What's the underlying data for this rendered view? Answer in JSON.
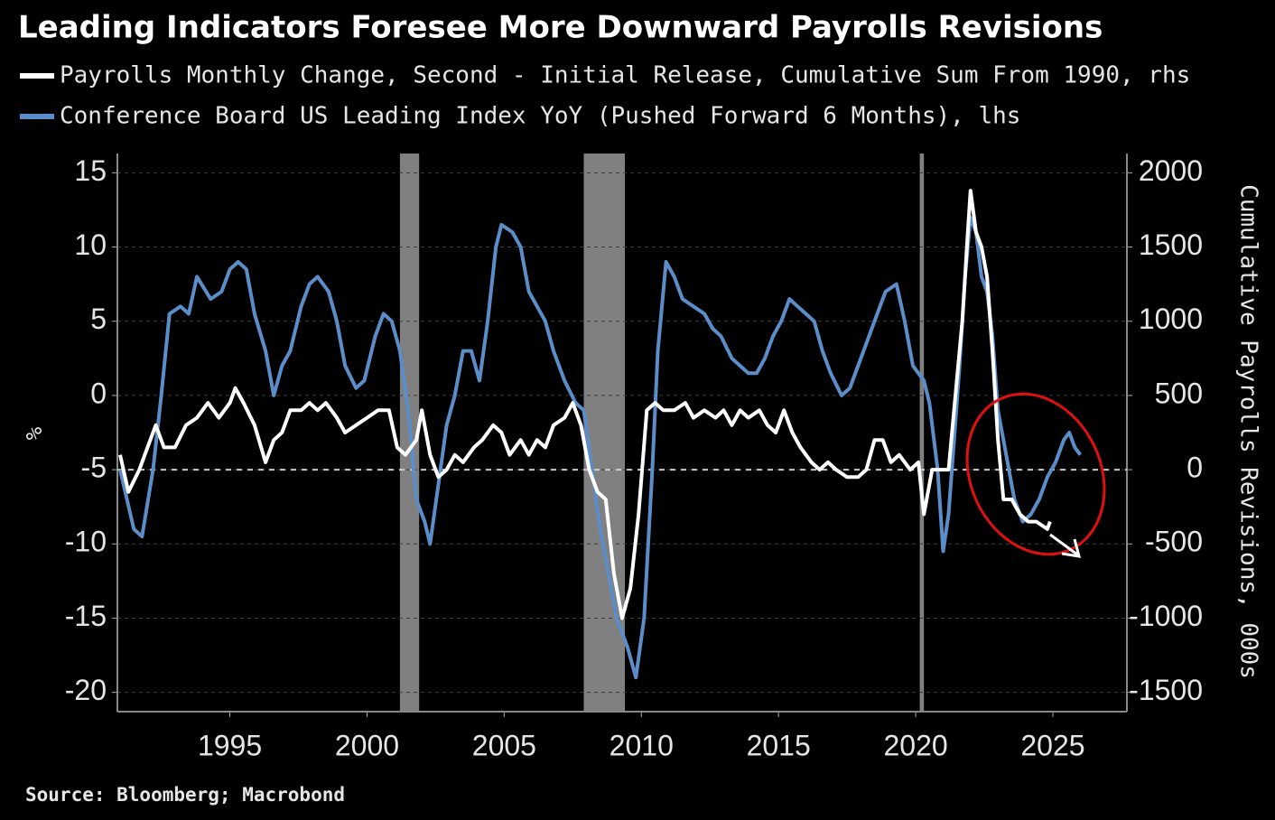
{
  "chart_data": {
    "type": "line",
    "title": "Leading Indicators Foresee More Downward Payrolls Revisions",
    "source": "Source: Bloomberg; Macrobond",
    "y_label": "%",
    "y2_label": "Cumulative Payrolls Revisions, 000s",
    "xlim": [
      1990.9,
      2027.7
    ],
    "xticks": [
      1995,
      2000,
      2005,
      2010,
      2015,
      2020,
      2025
    ],
    "ylim": [
      -21.3,
      16.3
    ],
    "yticks": [
      15,
      10,
      5,
      0,
      -5,
      -10,
      -15,
      -20
    ],
    "y2lim": [
      -1630,
      2130
    ],
    "y2ticks": [
      2000,
      1500,
      1000,
      500,
      0,
      -500,
      -1000,
      -1500
    ],
    "grid": true,
    "reference_line": {
      "value": 0,
      "axis": "y2",
      "color": "#cccccc"
    },
    "shaded_regions": [
      {
        "start": 2001.2,
        "end": 2001.9
      },
      {
        "start": 2007.9,
        "end": 2009.4
      },
      {
        "start": 2020.15,
        "end": 2020.3
      }
    ],
    "shade_color": "#808080",
    "series": [
      {
        "name": "Payrolls Monthly Change, Second - Initial Release, Cumulative Sum From 1990, rhs",
        "color": "#ffffff",
        "axis": "y2",
        "x": [
          1991.0,
          1991.3,
          1991.7,
          1992.0,
          1992.3,
          1992.6,
          1993.0,
          1993.4,
          1993.8,
          1994.2,
          1994.6,
          1995.0,
          1995.2,
          1995.5,
          1995.9,
          1996.3,
          1996.6,
          1996.9,
          1997.2,
          1997.6,
          1997.9,
          1998.2,
          1998.5,
          1998.9,
          1999.2,
          1999.6,
          2000.0,
          2000.4,
          2000.8,
          2001.1,
          2001.4,
          2001.8,
          2002.0,
          2002.3,
          2002.6,
          2002.9,
          2003.2,
          2003.5,
          2003.9,
          2004.2,
          2004.6,
          2004.9,
          2005.2,
          2005.6,
          2005.9,
          2006.2,
          2006.5,
          2006.8,
          2007.2,
          2007.5,
          2007.8,
          2008.1,
          2008.4,
          2008.7,
          2009.0,
          2009.3,
          2009.6,
          2009.9,
          2010.2,
          2010.5,
          2010.8,
          2011.2,
          2011.6,
          2011.9,
          2012.3,
          2012.7,
          2013.0,
          2013.3,
          2013.6,
          2013.9,
          2014.3,
          2014.6,
          2014.9,
          2015.2,
          2015.5,
          2015.8,
          2016.2,
          2016.5,
          2016.8,
          2017.1,
          2017.5,
          2017.9,
          2018.2,
          2018.5,
          2018.8,
          2019.1,
          2019.4,
          2019.8,
          2020.1,
          2020.3,
          2020.6,
          2020.9,
          2021.2,
          2021.5,
          2021.7,
          2021.9,
          2022.0,
          2022.2,
          2022.4,
          2022.6,
          2022.8,
          2023.0,
          2023.2,
          2023.5,
          2023.8,
          2024.1,
          2024.4,
          2024.8,
          2024.9
        ],
        "values": [
          100,
          -150,
          0,
          150,
          300,
          150,
          150,
          300,
          350,
          450,
          350,
          450,
          550,
          450,
          300,
          50,
          200,
          250,
          400,
          400,
          450,
          400,
          450,
          350,
          250,
          300,
          350,
          400,
          400,
          150,
          100,
          200,
          400,
          100,
          -50,
          0,
          100,
          50,
          150,
          200,
          300,
          250,
          100,
          200,
          100,
          200,
          150,
          300,
          350,
          450,
          300,
          0,
          -150,
          -200,
          -700,
          -1000,
          -800,
          -300,
          400,
          450,
          400,
          400,
          450,
          350,
          400,
          350,
          400,
          300,
          400,
          350,
          400,
          300,
          250,
          400,
          250,
          150,
          50,
          0,
          50,
          0,
          -50,
          -50,
          0,
          200,
          200,
          50,
          100,
          0,
          50,
          -300,
          0,
          0,
          0,
          600,
          1000,
          1600,
          1880,
          1600,
          1500,
          1300,
          800,
          200,
          -200,
          -200,
          -300,
          -350,
          -350,
          -400,
          -350
        ]
      },
      {
        "name": "Conference Board US Leading Index YoY (Pushed Forward 6 Months), lhs",
        "color": "#5b8ec9",
        "axis": "y",
        "x": [
          1991.0,
          1991.5,
          1991.8,
          1992.2,
          1992.5,
          1992.8,
          1993.2,
          1993.5,
          1993.8,
          1994.3,
          1994.7,
          1995.0,
          1995.3,
          1995.6,
          1995.9,
          1996.3,
          1996.6,
          1996.9,
          1997.2,
          1997.6,
          1997.9,
          1998.2,
          1998.6,
          1998.9,
          1999.2,
          1999.6,
          1999.9,
          2000.3,
          2000.6,
          2000.9,
          2001.2,
          2001.5,
          2001.8,
          2002.1,
          2002.3,
          2002.6,
          2002.9,
          2003.2,
          2003.5,
          2003.8,
          2004.1,
          2004.4,
          2004.7,
          2004.9,
          2005.3,
          2005.6,
          2005.9,
          2006.2,
          2006.5,
          2006.8,
          2007.2,
          2007.6,
          2007.9,
          2008.2,
          2008.5,
          2008.8,
          2009.1,
          2009.5,
          2009.8,
          2010.1,
          2010.4,
          2010.6,
          2010.9,
          2011.2,
          2011.5,
          2011.9,
          2012.3,
          2012.6,
          2012.9,
          2013.3,
          2013.6,
          2013.9,
          2014.2,
          2014.5,
          2014.8,
          2015.1,
          2015.4,
          2015.7,
          2016.0,
          2016.3,
          2016.6,
          2016.9,
          2017.3,
          2017.6,
          2017.9,
          2018.2,
          2018.6,
          2018.9,
          2019.3,
          2019.6,
          2019.9,
          2020.3,
          2020.5,
          2020.8,
          2021.0,
          2021.2,
          2021.4,
          2021.6,
          2021.8,
          2022.0,
          2022.2,
          2022.4,
          2022.6,
          2022.8,
          2023.0,
          2023.3,
          2023.6,
          2023.9,
          2024.2,
          2024.5,
          2024.8,
          2025.1,
          2025.4,
          2025.6,
          2025.8,
          2026.0
        ],
        "values": [
          -5,
          -9,
          -9.5,
          -5,
          0,
          5.5,
          6,
          5.5,
          8,
          6.5,
          7,
          8.5,
          9,
          8.5,
          5.5,
          3,
          0,
          2,
          3,
          6,
          7.5,
          8,
          7,
          5,
          2,
          0.5,
          1,
          4,
          5.5,
          5,
          3,
          -1,
          -7,
          -8.5,
          -10,
          -6,
          -2,
          0,
          3,
          3,
          1,
          5,
          10,
          11.5,
          11,
          10,
          7,
          6,
          5,
          3,
          1,
          -0.5,
          -1,
          -5,
          -9,
          -12,
          -15,
          -17,
          -19,
          -15,
          -5,
          3,
          9,
          8,
          6.5,
          6,
          5.5,
          4.5,
          4,
          2.5,
          2,
          1.5,
          1.5,
          2.5,
          4,
          5,
          6.5,
          6,
          5.5,
          5,
          3,
          1.5,
          0,
          0.5,
          2,
          3.5,
          5.5,
          7,
          7.5,
          5,
          2,
          1,
          -0.5,
          -5,
          -10.5,
          -8,
          -3,
          2,
          8,
          12,
          11,
          8,
          7,
          4,
          -1,
          -4,
          -7,
          -8.5,
          -8,
          -7,
          -5.5,
          -4.5,
          -3,
          -2.5,
          -3.5,
          -4
        ]
      }
    ]
  }
}
